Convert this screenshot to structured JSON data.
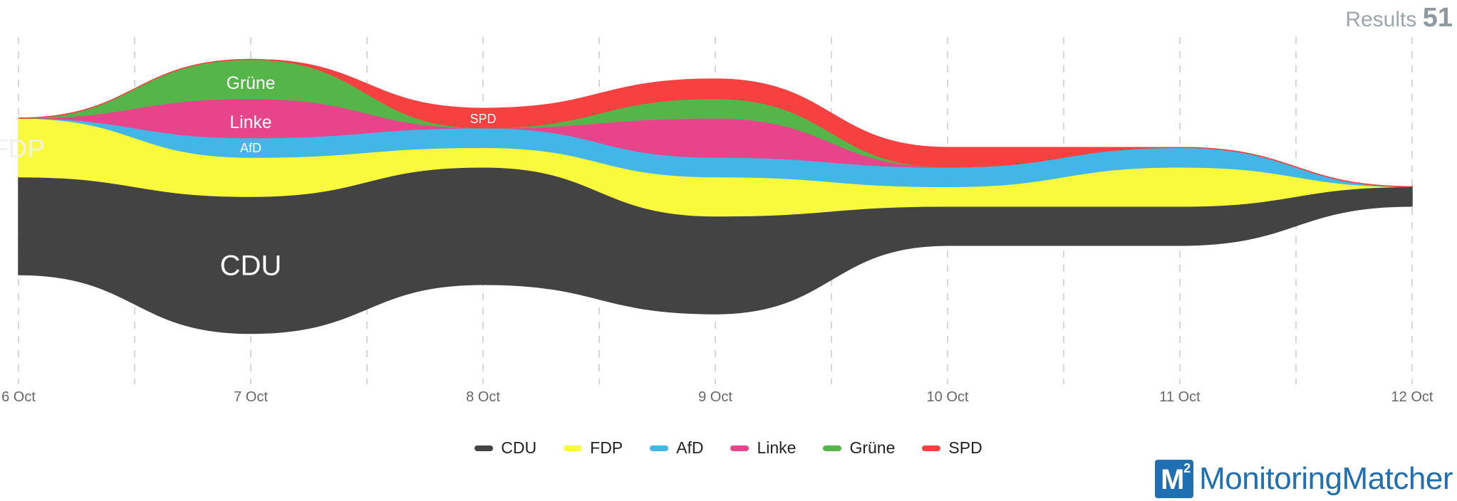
{
  "header": {
    "results_label": "Results",
    "results_count": "51"
  },
  "brand": {
    "logo_text": "M",
    "logo_sup": "2",
    "name": "MonitoringMatcher"
  },
  "chart_data": {
    "type": "area",
    "subtype": "streamgraph",
    "title": "",
    "x": [
      "6 Oct",
      "7 Oct",
      "8 Oct",
      "9 Oct",
      "10 Oct",
      "11 Oct",
      "12 Oct"
    ],
    "x_ticks": [
      "6 Oct",
      "7 Oct",
      "8 Oct",
      "9 Oct",
      "10 Oct",
      "11 Oct",
      "12 Oct"
    ],
    "grid": "vertical dashed",
    "legend_position": "bottom",
    "series": [
      {
        "name": "CDU",
        "color": "#434343",
        "values": [
          5,
          7,
          6,
          5,
          2,
          2,
          1
        ],
        "label": "CDU"
      },
      {
        "name": "FDP",
        "color": "#fafa3c",
        "values": [
          3,
          2,
          1,
          2,
          1,
          2,
          0
        ],
        "label": "FDP"
      },
      {
        "name": "AfD",
        "color": "#43b6e8",
        "values": [
          0,
          1,
          1,
          1,
          1,
          1,
          0
        ],
        "label": "AfD"
      },
      {
        "name": "Linke",
        "color": "#e8448c",
        "values": [
          0,
          2,
          0,
          2,
          0,
          0,
          0
        ],
        "label": "Linke"
      },
      {
        "name": "Grüne",
        "color": "#55b548",
        "values": [
          0,
          2,
          0,
          1,
          0,
          0,
          0
        ],
        "label": "Grüne"
      },
      {
        "name": "SPD",
        "color": "#f74040",
        "values": [
          0,
          0,
          1,
          1,
          1,
          0,
          0
        ],
        "label": "SPD"
      }
    ]
  }
}
